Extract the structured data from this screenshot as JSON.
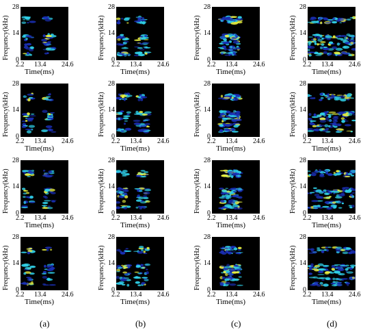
{
  "axes": {
    "ylabel": "Frequency(kHz)",
    "xlabel": "Time(ms)",
    "yticks": [
      "28",
      "14",
      "0"
    ],
    "xticks": [
      "2.2",
      "13.4",
      "24.6"
    ]
  },
  "captions": [
    "(a)",
    "(b)",
    "(c)",
    "(d)"
  ],
  "colormap": {
    "background": "#000000",
    "low": "#1a2fb5",
    "mid": "#2fd0e8",
    "high": "#e8f040"
  }
}
